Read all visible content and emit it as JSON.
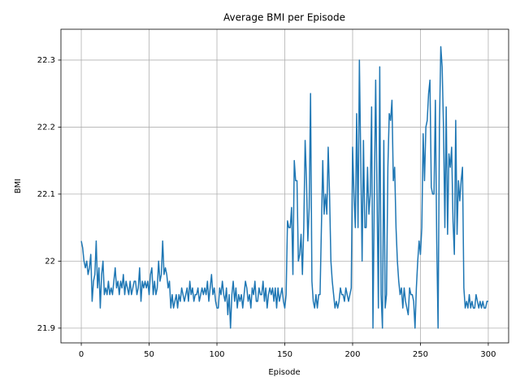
{
  "chart_data": {
    "type": "line",
    "title": "Average BMI per Episode",
    "x_label": "Episode",
    "y_label": "BMI",
    "color": "#1f77b4",
    "grid": true,
    "xlim": [
      -15,
      315
    ],
    "xticks": [
      0,
      50,
      100,
      150,
      200,
      250,
      300
    ],
    "ylim": [
      21.878,
      22.346
    ],
    "yticks": [
      21.9,
      22.0,
      22.1,
      22.2,
      22.3
    ],
    "x": [
      0,
      1,
      2,
      3,
      4,
      5,
      6,
      7,
      8,
      9,
      10,
      11,
      12,
      13,
      14,
      15,
      16,
      17,
      18,
      19,
      20,
      21,
      22,
      23,
      24,
      25,
      26,
      27,
      28,
      29,
      30,
      31,
      32,
      33,
      34,
      35,
      36,
      37,
      38,
      39,
      40,
      41,
      42,
      43,
      44,
      45,
      46,
      47,
      48,
      49,
      50,
      51,
      52,
      53,
      54,
      55,
      56,
      57,
      58,
      59,
      60,
      61,
      62,
      63,
      64,
      65,
      66,
      67,
      68,
      69,
      70,
      71,
      72,
      73,
      74,
      75,
      76,
      77,
      78,
      79,
      80,
      81,
      82,
      83,
      84,
      85,
      86,
      87,
      88,
      89,
      90,
      91,
      92,
      93,
      94,
      95,
      96,
      97,
      98,
      99,
      100,
      101,
      102,
      103,
      104,
      105,
      106,
      107,
      108,
      109,
      110,
      111,
      112,
      113,
      114,
      115,
      116,
      117,
      118,
      119,
      120,
      121,
      122,
      123,
      124,
      125,
      126,
      127,
      128,
      129,
      130,
      131,
      132,
      133,
      134,
      135,
      136,
      137,
      138,
      139,
      140,
      141,
      142,
      143,
      144,
      145,
      146,
      147,
      148,
      149,
      150,
      151,
      152,
      153,
      154,
      155,
      156,
      157,
      158,
      159,
      160,
      161,
      162,
      163,
      164,
      165,
      166,
      167,
      168,
      169,
      170,
      171,
      172,
      173,
      174,
      175,
      176,
      177,
      178,
      179,
      180,
      181,
      182,
      183,
      184,
      185,
      186,
      187,
      188,
      189,
      190,
      191,
      192,
      193,
      194,
      195,
      196,
      197,
      198,
      199,
      200,
      201,
      202,
      203,
      204,
      205,
      206,
      207,
      208,
      209,
      210,
      211,
      212,
      213,
      214,
      215,
      216,
      217,
      218,
      219,
      220,
      221,
      222,
      223,
      224,
      225,
      226,
      227,
      228,
      229,
      230,
      231,
      232,
      233,
      234,
      235,
      236,
      237,
      238,
      239,
      240,
      241,
      242,
      243,
      244,
      245,
      246,
      247,
      248,
      249,
      250,
      251,
      252,
      253,
      254,
      255,
      256,
      257,
      258,
      259,
      260,
      261,
      262,
      263,
      264,
      265,
      266,
      267,
      268,
      269,
      270,
      271,
      272,
      273,
      274,
      275,
      276,
      277,
      278,
      279,
      280,
      281,
      282,
      283,
      284,
      285,
      286,
      287,
      288,
      289,
      290,
      291,
      292,
      293,
      294,
      295,
      296,
      297,
      298,
      299,
      300
    ],
    "values": [
      22.03,
      22.02,
      22.0,
      21.99,
      22.0,
      21.98,
      21.99,
      22.01,
      21.94,
      21.97,
      21.98,
      22.03,
      21.96,
      21.99,
      21.93,
      21.98,
      22.0,
      21.95,
      21.96,
      21.95,
      21.97,
      21.95,
      21.96,
      21.95,
      21.97,
      21.99,
      21.96,
      21.97,
      21.95,
      21.97,
      21.96,
      21.98,
      21.95,
      21.97,
      21.96,
      21.95,
      21.97,
      21.95,
      21.96,
      21.97,
      21.97,
      21.95,
      21.96,
      21.99,
      21.94,
      21.97,
      21.96,
      21.97,
      21.96,
      21.97,
      21.95,
      21.98,
      21.99,
      21.95,
      21.97,
      21.95,
      21.96,
      22.0,
      21.97,
      21.98,
      22.03,
      21.98,
      21.99,
      21.98,
      21.96,
      21.97,
      21.93,
      21.95,
      21.93,
      21.94,
      21.95,
      21.93,
      21.95,
      21.94,
      21.96,
      21.95,
      21.94,
      21.95,
      21.96,
      21.94,
      21.97,
      21.95,
      21.96,
      21.94,
      21.95,
      21.95,
      21.96,
      21.94,
      21.95,
      21.96,
      21.95,
      21.96,
      21.95,
      21.97,
      21.94,
      21.96,
      21.98,
      21.95,
      21.96,
      21.94,
      21.93,
      21.93,
      21.96,
      21.95,
      21.97,
      21.95,
      21.94,
      21.96,
      21.92,
      21.95,
      21.9,
      21.95,
      21.97,
      21.94,
      21.96,
      21.93,
      21.95,
      21.94,
      21.95,
      21.93,
      21.95,
      21.97,
      21.96,
      21.94,
      21.95,
      21.93,
      21.96,
      21.95,
      21.97,
      21.94,
      21.94,
      21.96,
      21.95,
      21.95,
      21.97,
      21.94,
      21.96,
      21.93,
      21.95,
      21.96,
      21.95,
      21.96,
      21.94,
      21.96,
      21.93,
      21.96,
      21.94,
      21.95,
      21.96,
      21.94,
      21.93,
      21.95,
      22.06,
      22.05,
      22.05,
      22.08,
      21.98,
      22.15,
      22.12,
      22.12,
      22.0,
      22.01,
      22.04,
      21.98,
      22.05,
      22.18,
      22.12,
      22.03,
      22.08,
      22.25,
      21.97,
      21.94,
      21.93,
      21.95,
      21.93,
      21.95,
      21.95,
      22.05,
      22.15,
      22.07,
      22.1,
      22.07,
      22.17,
      22.1,
      22.0,
      21.97,
      21.95,
      21.93,
      21.94,
      21.93,
      21.94,
      21.96,
      21.95,
      21.95,
      21.94,
      21.96,
      21.95,
      21.94,
      21.95,
      21.96,
      22.17,
      22.1,
      22.05,
      22.22,
      22.05,
      22.3,
      22.15,
      22.0,
      22.18,
      22.05,
      22.05,
      22.14,
      22.07,
      22.1,
      22.23,
      21.9,
      22.1,
      22.27,
      22.1,
      21.93,
      22.29,
      21.95,
      21.9,
      22.18,
      21.93,
      21.95,
      22.14,
      22.22,
      22.21,
      22.24,
      22.12,
      22.14,
      22.05,
      22.0,
      21.97,
      21.95,
      21.96,
      21.93,
      21.96,
      21.94,
      21.93,
      21.92,
      21.96,
      21.95,
      21.95,
      21.94,
      21.9,
      21.96,
      22.0,
      22.03,
      22.01,
      22.05,
      22.19,
      22.12,
      22.2,
      22.21,
      22.25,
      22.27,
      22.11,
      22.1,
      22.1,
      22.24,
      22.03,
      21.9,
      22.2,
      22.32,
      22.29,
      22.2,
      22.05,
      22.23,
      22.04,
      22.16,
      22.14,
      22.17,
      22.06,
      22.01,
      22.21,
      22.04,
      22.12,
      22.09,
      22.12,
      22.14,
      21.96,
      21.93,
      21.94,
      21.93,
      21.95,
      21.93,
      21.94,
      21.93,
      21.93,
      21.95,
      21.94,
      21.93,
      21.94,
      21.93,
      21.94,
      21.93,
      21.93,
      21.94,
      21.94
    ]
  }
}
